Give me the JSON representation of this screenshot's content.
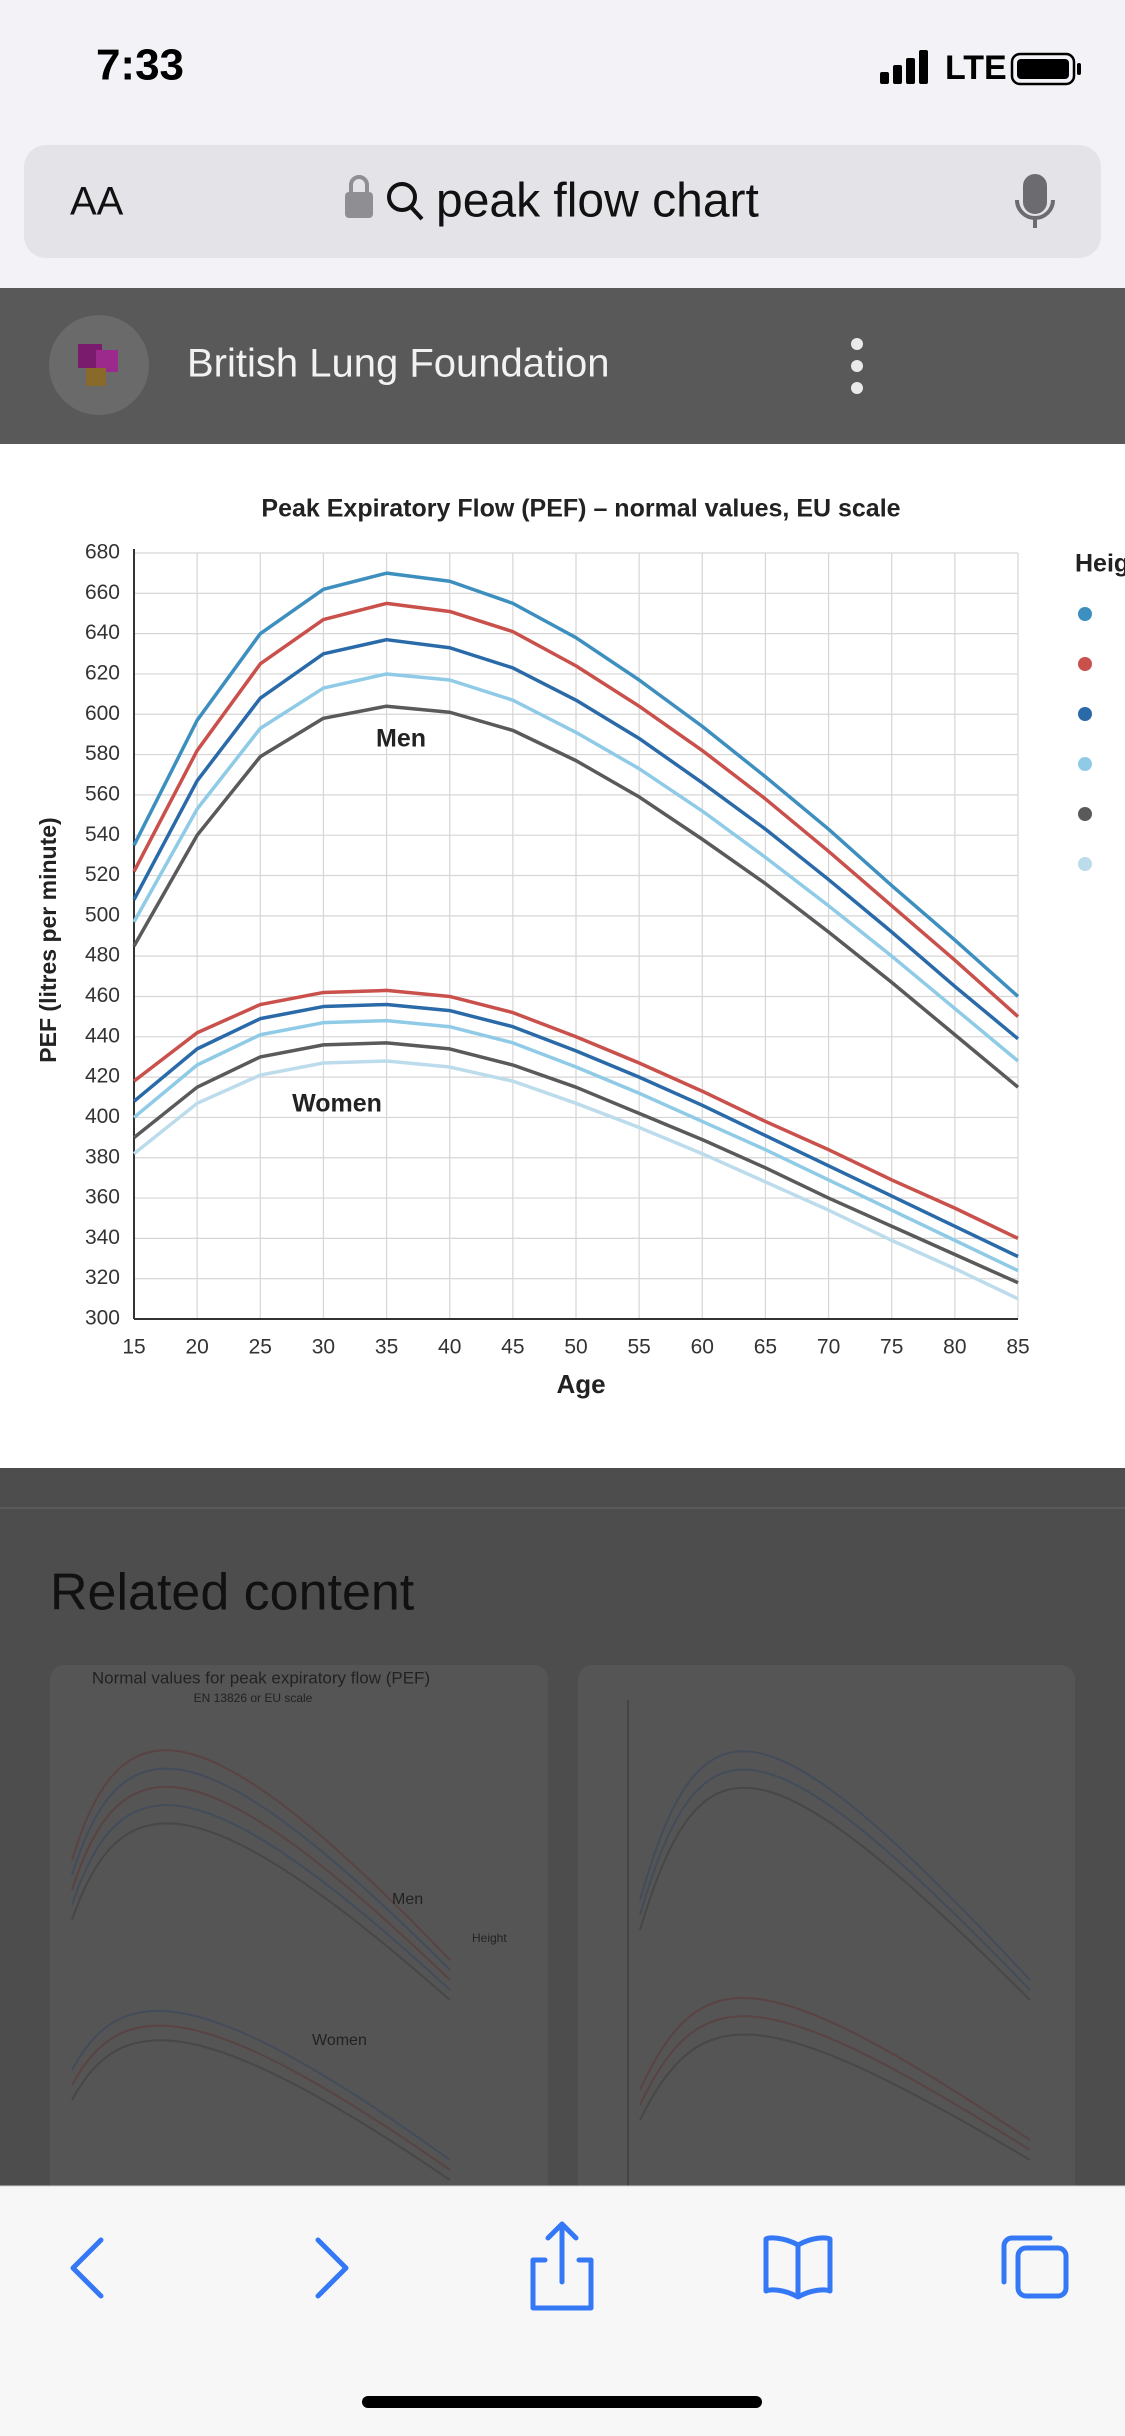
{
  "status_bar": {
    "time": "7:33",
    "network": "LTE"
  },
  "address_bar": {
    "text_size_button": "AA",
    "query": "peak flow chart"
  },
  "result_header": {
    "source": "British Lung Foundation"
  },
  "chart_data": {
    "type": "line",
    "title": "Peak Expiratory Flow (PEF) – normal values, EU scale",
    "x_label": "Age",
    "y_label": "PEF (litres per minute)",
    "legend_title": "Height",
    "annotations": [
      "Men",
      "Women"
    ],
    "x": [
      15,
      20,
      25,
      30,
      35,
      40,
      45,
      50,
      55,
      60,
      65,
      70,
      75,
      80,
      85
    ],
    "xlim": [
      15,
      85
    ],
    "xticks": [
      15,
      20,
      25,
      30,
      35,
      40,
      45,
      50,
      55,
      60,
      65,
      70,
      75,
      80,
      85
    ],
    "ylim": [
      300,
      680
    ],
    "yticks": [
      300,
      320,
      340,
      360,
      380,
      400,
      420,
      440,
      460,
      480,
      500,
      520,
      540,
      560,
      580,
      600,
      620,
      640,
      660,
      680
    ],
    "grid": true,
    "series": [
      {
        "color": "#3d8fbf",
        "values": [
          535,
          597,
          640,
          662,
          670,
          666,
          655,
          638,
          617,
          594,
          569,
          543,
          515,
          488,
          460
        ]
      },
      {
        "color": "#c9504b",
        "values": [
          522,
          582,
          625,
          647,
          655,
          651,
          641,
          624,
          604,
          582,
          558,
          532,
          505,
          478,
          450
        ]
      },
      {
        "color": "#2a6aa8",
        "values": [
          508,
          567,
          608,
          630,
          637,
          633,
          623,
          607,
          588,
          566,
          543,
          518,
          492,
          465,
          439
        ]
      },
      {
        "color": "#8fcbe6",
        "values": [
          497,
          553,
          593,
          613,
          620,
          617,
          607,
          591,
          573,
          552,
          529,
          505,
          480,
          454,
          428
        ]
      },
      {
        "color": "#5a5a5a",
        "values": [
          485,
          540,
          579,
          598,
          604,
          601,
          592,
          577,
          559,
          538,
          516,
          492,
          467,
          441,
          415
        ]
      },
      {
        "color": "#c9504b",
        "values": [
          418,
          442,
          456,
          462,
          463,
          460,
          452,
          440,
          427,
          413,
          398,
          384,
          369,
          355,
          340
        ]
      },
      {
        "color": "#2a6aa8",
        "values": [
          408,
          434,
          449,
          455,
          456,
          453,
          445,
          433,
          420,
          406,
          391,
          376,
          361,
          346,
          331
        ]
      },
      {
        "color": "#8fcbe6",
        "values": [
          400,
          426,
          441,
          447,
          448,
          445,
          437,
          425,
          412,
          398,
          384,
          369,
          354,
          339,
          324
        ]
      },
      {
        "color": "#5a5a5a",
        "values": [
          390,
          415,
          430,
          436,
          437,
          434,
          426,
          415,
          402,
          389,
          375,
          360,
          346,
          332,
          318
        ]
      },
      {
        "color": "#bcdcec",
        "values": [
          382,
          407,
          421,
          427,
          428,
          425,
          418,
          407,
          395,
          382,
          368,
          354,
          339,
          325,
          310
        ]
      }
    ],
    "legend_colors": [
      "#3d8fbf",
      "#c9504b",
      "#2a6aa8",
      "#8fcbe6",
      "#5a5a5a",
      "#bcdcec"
    ]
  },
  "related": {
    "title": "Related content",
    "thumbnail": {
      "title": "Normal values for peak expiratory flow (PEF)",
      "subtitle": "EN 13826 or EU scale",
      "men": "Men",
      "women": "Women",
      "height": "Height"
    }
  }
}
